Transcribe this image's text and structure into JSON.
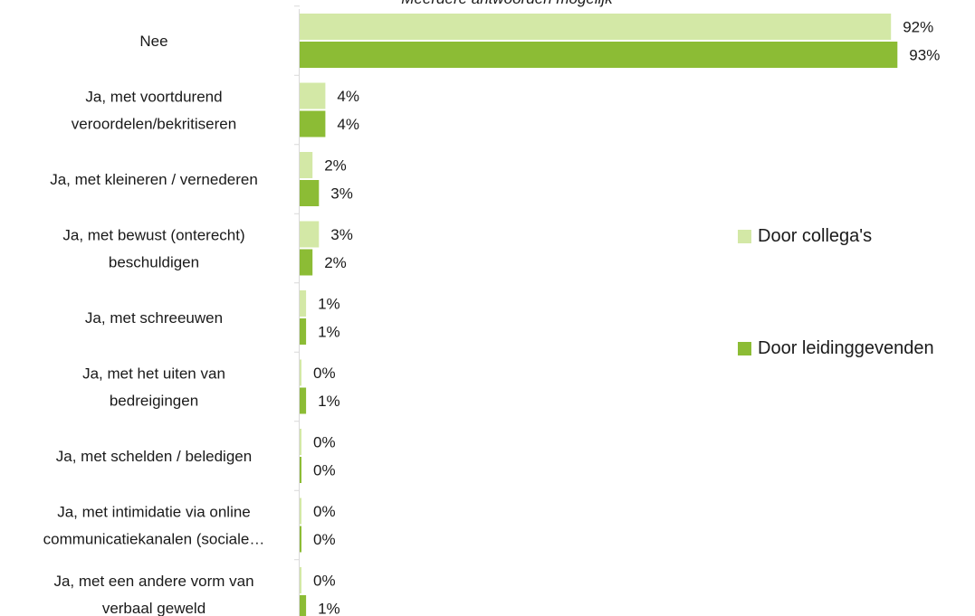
{
  "subtitle": "Meerdere antwoorden mogelijk",
  "colors": {
    "collegas": "#d3e8a6",
    "leidinggevenden": "#8cbc35",
    "axis": "#d9d9d9",
    "text": "#1a1a1a"
  },
  "chart_data": {
    "type": "bar",
    "orientation": "horizontal",
    "categories": [
      [
        "Nee"
      ],
      [
        "Ja, met voortdurend",
        "veroordelen/bekritiseren"
      ],
      [
        "Ja, met kleineren / vernederen"
      ],
      [
        "Ja, met bewust (onterecht)",
        "beschuldigen"
      ],
      [
        "Ja, met schreeuwen"
      ],
      [
        "Ja, met het uiten van",
        "bedreigingen"
      ],
      [
        "Ja, met schelden / beledigen"
      ],
      [
        "Ja, met intimidatie via online",
        "communicatiekanalen (sociale…"
      ],
      [
        "Ja, met een andere vorm van",
        "verbaal geweld"
      ]
    ],
    "series": [
      {
        "name": "Door collega's",
        "values": [
          92,
          4,
          2,
          3,
          1,
          0,
          0,
          0,
          0
        ],
        "labels": [
          "92%",
          "4%",
          "2%",
          "3%",
          "1%",
          "0%",
          "0%",
          "0%",
          "0%"
        ]
      },
      {
        "name": "Door leidinggevenden",
        "values": [
          93,
          4,
          3,
          2,
          1,
          1,
          0,
          0,
          1
        ],
        "labels": [
          "93%",
          "4%",
          "3%",
          "2%",
          "1%",
          "1%",
          "0%",
          "0%",
          "1%"
        ]
      }
    ],
    "xlim": [
      0,
      100
    ],
    "grid": false,
    "legend_position": "right"
  }
}
